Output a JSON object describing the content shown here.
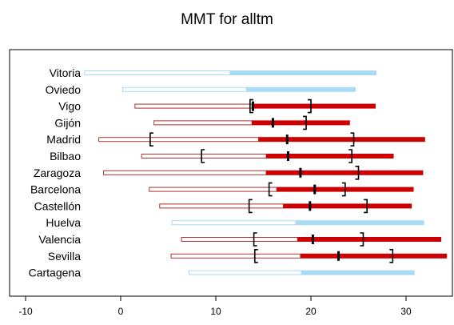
{
  "chart_data": {
    "type": "bar",
    "title": "MMT for alltm",
    "xlabel": "",
    "ylabel": "",
    "xlim": [
      -12,
      35
    ],
    "x_ticks": [
      -10,
      0,
      10,
      20,
      30
    ],
    "x_tick_labels": [
      "-10",
      "0",
      "10",
      "20",
      "30"
    ],
    "grid": false,
    "legend": "none",
    "colors": {
      "dark_fill": "#cc0000",
      "dark_outline": "#b03030",
      "light_fill": "#a8dcf5",
      "light_outline": "#a8dcf5",
      "marker": "#000000",
      "frame": "#000000"
    },
    "categories": [
      "Vitoria",
      "Oviedo",
      "Vigo",
      "Gijón",
      "Madrid",
      "Bilbao",
      "Zaragoza",
      "Barcelona",
      "Castellón",
      "Huelva",
      "Valencia",
      "Sevilla",
      "Cartagena"
    ],
    "series": [
      {
        "category": "Vitoria",
        "style": "light",
        "min": -3.8,
        "split": 11.5,
        "max": 26.9,
        "mmt": null,
        "ci_low": null,
        "ci_high": null
      },
      {
        "category": "Oviedo",
        "style": "light",
        "min": 0.2,
        "split": 13.2,
        "max": 24.7,
        "mmt": null,
        "ci_low": null,
        "ci_high": null
      },
      {
        "category": "Vigo",
        "style": "dark",
        "min": 1.5,
        "split": 13.8,
        "max": 26.8,
        "mmt": 13.9,
        "ci_low": 13.6,
        "ci_high": 20.0
      },
      {
        "category": "Gijón",
        "style": "dark",
        "min": 3.5,
        "split": 13.8,
        "max": 24.1,
        "mmt": 16.0,
        "ci_low": null,
        "ci_high": 19.5
      },
      {
        "category": "Madrid",
        "style": "dark",
        "min": -2.3,
        "split": 14.5,
        "max": 32.0,
        "mmt": 17.5,
        "ci_low": 3.1,
        "ci_high": 24.5
      },
      {
        "category": "Bilbao",
        "style": "dark",
        "min": 2.2,
        "split": 15.3,
        "max": 28.7,
        "mmt": 17.6,
        "ci_low": 8.5,
        "ci_high": 24.3
      },
      {
        "category": "Zaragoza",
        "style": "dark",
        "min": -1.8,
        "split": 15.3,
        "max": 31.8,
        "mmt": 18.9,
        "ci_low": null,
        "ci_high": 25.0
      },
      {
        "category": "Barcelona",
        "style": "dark",
        "min": 3.0,
        "split": 16.4,
        "max": 30.8,
        "mmt": 20.4,
        "ci_low": 15.6,
        "ci_high": 23.6
      },
      {
        "category": "Castellón",
        "style": "dark",
        "min": 4.1,
        "split": 17.1,
        "max": 30.6,
        "mmt": 19.9,
        "ci_low": 13.5,
        "ci_high": 25.9
      },
      {
        "category": "Huelva",
        "style": "light",
        "min": 5.4,
        "split": 18.4,
        "max": 31.9,
        "mmt": null,
        "ci_low": null,
        "ci_high": null
      },
      {
        "category": "Valencia",
        "style": "dark",
        "min": 6.4,
        "split": 18.6,
        "max": 33.7,
        "mmt": 20.2,
        "ci_low": 14.0,
        "ci_high": 25.5
      },
      {
        "category": "Sevilla",
        "style": "dark",
        "min": 5.3,
        "split": 18.9,
        "max": 34.3,
        "mmt": 22.9,
        "ci_low": 14.1,
        "ci_high": 28.6
      },
      {
        "category": "Cartagena",
        "style": "light",
        "min": 7.2,
        "split": 19.0,
        "max": 30.9,
        "mmt": null,
        "ci_low": null,
        "ci_high": null
      }
    ]
  }
}
